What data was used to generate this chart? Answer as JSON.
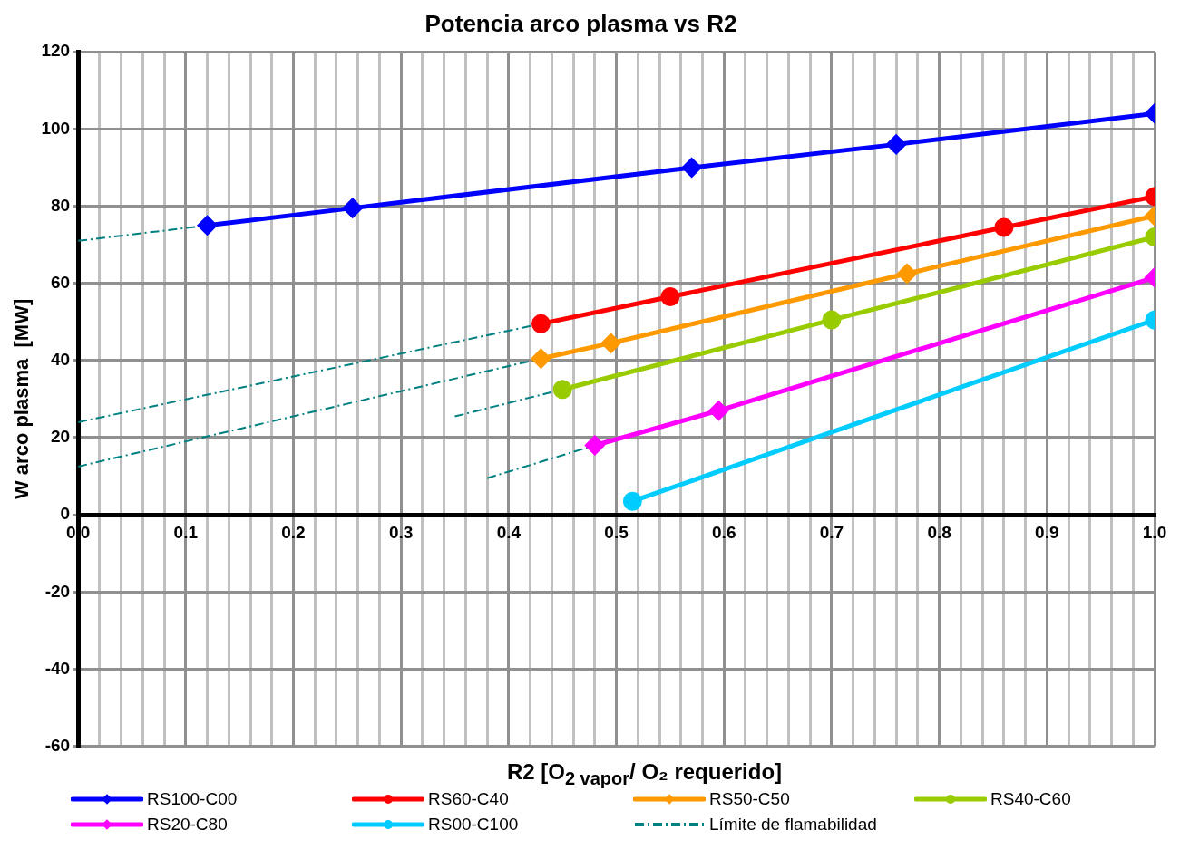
{
  "chart_data": {
    "type": "line",
    "title": "Potencia arco plasma vs R2",
    "xlabel": "R2 [O$_{2 vapor}$/ O₂ requerido]",
    "ylabel": "W arco plasma  [MW]",
    "xlim": [
      0,
      1
    ],
    "ylim": [
      -60,
      120
    ],
    "xticks": [
      {
        "value": 0,
        "label": "0.0"
      },
      {
        "value": 0.02,
        "label": null
      },
      {
        "value": 0.04,
        "label": null
      },
      {
        "value": 0.06,
        "label": null
      },
      {
        "value": 0.08,
        "label": null
      },
      0.1,
      {
        "value": 0.12,
        "label": null
      },
      {
        "value": 0.14,
        "label": null
      },
      {
        "value": 0.16,
        "label": null
      },
      {
        "value": 0.18,
        "label": null
      },
      0.2,
      {
        "value": 0.22,
        "label": null
      },
      {
        "value": 0.24,
        "label": null
      },
      {
        "value": 0.26,
        "label": null
      },
      {
        "value": 0.28,
        "label": null
      },
      0.3,
      {
        "value": 0.32,
        "label": null
      },
      {
        "value": 0.34,
        "label": null
      },
      {
        "value": 0.36,
        "label": null
      },
      {
        "value": 0.38,
        "label": null
      },
      0.4,
      {
        "value": 0.42,
        "label": null
      },
      {
        "value": 0.44,
        "label": null
      },
      {
        "value": 0.46,
        "label": null
      },
      {
        "value": 0.48,
        "label": null
      },
      0.5,
      {
        "value": 0.52,
        "label": null
      },
      {
        "value": 0.54,
        "label": null
      },
      {
        "value": 0.56,
        "label": null
      },
      {
        "value": 0.58,
        "label": null
      },
      0.6,
      {
        "value": 0.62,
        "label": null
      },
      {
        "value": 0.64,
        "label": null
      },
      {
        "value": 0.66,
        "label": null
      },
      {
        "value": 0.68,
        "label": null
      },
      0.7,
      {
        "value": 0.72,
        "label": null
      },
      {
        "value": 0.74,
        "label": null
      },
      {
        "value": 0.76,
        "label": null
      },
      {
        "value": 0.78,
        "label": null
      },
      0.8,
      {
        "value": 0.82,
        "label": null
      },
      {
        "value": 0.84,
        "label": null
      },
      {
        "value": 0.86,
        "label": null
      },
      {
        "value": 0.88,
        "label": null
      },
      0.9,
      {
        "value": 0.92,
        "label": null
      },
      {
        "value": 0.94,
        "label": null
      },
      {
        "value": 0.96,
        "label": null
      },
      {
        "value": 0.98,
        "label": null
      },
      {
        "value": 1,
        "label": "1.0"
      }
    ],
    "yticks": [
      -60,
      -40,
      -20,
      0,
      20,
      40,
      60,
      80,
      100,
      120
    ],
    "grid": true,
    "legend": "bottom",
    "series": [
      {
        "name": "RS100-C00",
        "color": "#0000ff",
        "marker": "diamond",
        "x": [
          0.12,
          0.255,
          0.57,
          0.76,
          1.0
        ],
        "values": [
          75,
          79.5,
          90,
          96,
          104
        ]
      },
      {
        "name": "RS60-C40",
        "color": "#ff0000",
        "marker": "circle",
        "x": [
          0.43,
          0.55,
          0.86,
          1.0
        ],
        "values": [
          49.5,
          56.5,
          74.5,
          82.5
        ]
      },
      {
        "name": "RS50-C50",
        "color": "#ff9900",
        "marker": "diamond",
        "x": [
          0.43,
          0.495,
          0.77,
          1.0
        ],
        "values": [
          40.5,
          44.5,
          62.5,
          77.5
        ]
      },
      {
        "name": "RS40-C60",
        "color": "#99cc00",
        "marker": "circle",
        "x": [
          0.45,
          0.7,
          1.0
        ],
        "values": [
          32.5,
          50.5,
          72
        ]
      },
      {
        "name": "RS20-C80",
        "color": "#ff00ff",
        "marker": "diamond",
        "x": [
          0.48,
          0.595,
          1.0
        ],
        "values": [
          18,
          27,
          61.5
        ]
      },
      {
        "name": "RS00-C100",
        "color": "#00ccff",
        "marker": "circle",
        "x": [
          0.515,
          1.0
        ],
        "values": [
          3.5,
          50.5
        ]
      },
      {
        "name": "Límite de flamabilidad",
        "color": "#008080",
        "marker": "none",
        "line_style": "dashed",
        "x": [
          0,
          0.12
        ],
        "values": [
          71,
          75
        ]
      },
      {
        "color": "#008080",
        "marker": "none",
        "line_style": "dashed",
        "x": [
          0,
          0.43
        ],
        "values": [
          24,
          49.5
        ]
      },
      {
        "color": "#008080",
        "marker": "none",
        "line_style": "dashed",
        "x": [
          0,
          0.43
        ],
        "values": [
          12.5,
          40.5
        ]
      },
      {
        "color": "#008080",
        "marker": "none",
        "line_style": "dashed",
        "x": [
          0.35,
          0.45
        ],
        "values": [
          25.5,
          32.5
        ]
      },
      {
        "color": "#008080",
        "marker": "none",
        "line_style": "dashed",
        "x": [
          0.38,
          0.48
        ],
        "values": [
          9.5,
          18
        ]
      }
    ]
  }
}
